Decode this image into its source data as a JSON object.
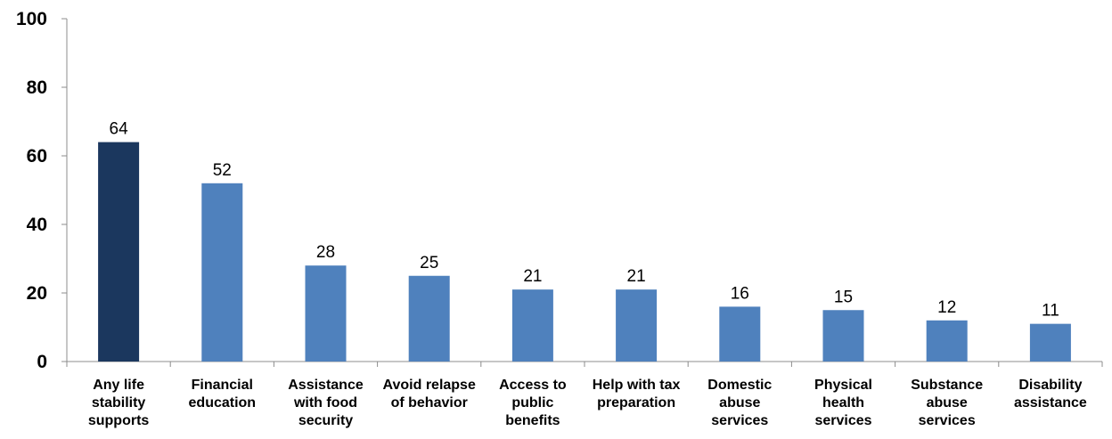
{
  "chart_data": {
    "type": "bar",
    "categories": [
      [
        "Any life",
        "stability",
        "supports"
      ],
      [
        "Financial",
        "education"
      ],
      [
        "Assistance",
        "with food",
        "security"
      ],
      [
        "Avoid relapse",
        "of behavior"
      ],
      [
        "Access to",
        "public",
        "benefits"
      ],
      [
        "Help with tax",
        "preparation"
      ],
      [
        "Domestic",
        "abuse",
        "services"
      ],
      [
        "Physical",
        "health",
        "services"
      ],
      [
        "Substance",
        "abuse",
        "services"
      ],
      [
        "Disability",
        "assistance"
      ]
    ],
    "values": [
      64,
      52,
      28,
      25,
      21,
      21,
      16,
      15,
      12,
      11
    ],
    "data_labels": [
      "64",
      "52",
      "28",
      "25",
      "21",
      "21",
      "16",
      "15",
      "12",
      "11"
    ],
    "bar_colors": [
      "#1b375e",
      "#4f81bd",
      "#4f81bd",
      "#4f81bd",
      "#4f81bd",
      "#4f81bd",
      "#4f81bd",
      "#4f81bd",
      "#4f81bd",
      "#4f81bd"
    ],
    "yticks": [
      "0",
      "20",
      "40",
      "60",
      "80",
      "100"
    ],
    "ylim": [
      0,
      100
    ],
    "title": "",
    "xlabel": "",
    "ylabel": "",
    "grid": false,
    "legend": "none"
  }
}
